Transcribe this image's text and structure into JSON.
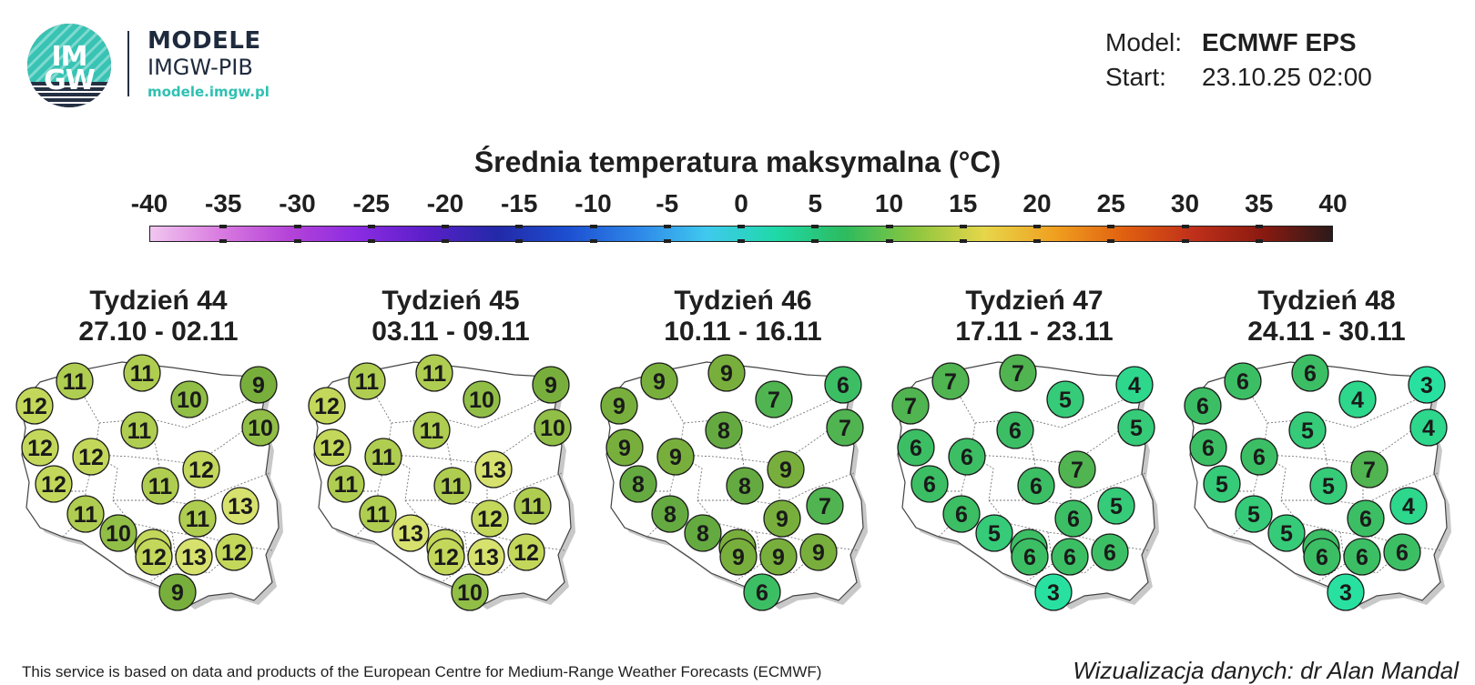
{
  "logo": {
    "abbr_top": "IM",
    "abbr_bottom": "GW",
    "title": "MODELE",
    "subtitle": "IMGW-PIB",
    "url": "modele.imgw.pl"
  },
  "model_info": {
    "model_label": "Model:",
    "model_value": "ECMWF EPS",
    "start_label": "Start:",
    "start_value": "23.10.25 02:00"
  },
  "colorbar": {
    "title": "Średnia temperatura maksymalna (°C)",
    "ticks": [
      "-40",
      "-35",
      "-30",
      "-25",
      "-20",
      "-15",
      "-10",
      "-5",
      "0",
      "5",
      "10",
      "15",
      "20",
      "25",
      "30",
      "35",
      "40"
    ],
    "colors": [
      "#f1c6f0",
      "#d97be0",
      "#b443d8",
      "#8a2be2",
      "#5a1fc8",
      "#2229a8",
      "#1d4fd1",
      "#2e86e8",
      "#3fc9ef",
      "#1fd9a8",
      "#2dbb5e",
      "#8cc63f",
      "#e6d64a",
      "#f0a020",
      "#e06010",
      "#c0301a",
      "#8b1a10",
      "#2c1a1a"
    ]
  },
  "weeks": [
    {
      "name": "Tydzień 44",
      "dates": "27.10 - 02.11",
      "values": [
        "11",
        "11",
        "9",
        "12",
        "10",
        "10",
        "12",
        "11",
        "12",
        "12",
        "11",
        "12",
        "11",
        "13",
        "11",
        "10",
        "12",
        "12",
        "13",
        "12",
        "9"
      ]
    },
    {
      "name": "Tydzień 45",
      "dates": "03.11 - 09.11",
      "values": [
        "11",
        "11",
        "9",
        "12",
        "10",
        "10",
        "12",
        "11",
        "11",
        "11",
        "11",
        "13",
        "11",
        "11",
        "12",
        "13",
        "12",
        "12",
        "13",
        "12",
        "10"
      ]
    },
    {
      "name": "Tydzień 46",
      "dates": "10.11 - 16.11",
      "values": [
        "9",
        "9",
        "6",
        "9",
        "7",
        "7",
        "9",
        "8",
        "9",
        "8",
        "8",
        "9",
        "8",
        "7",
        "9",
        "8",
        "9",
        "9",
        "9",
        "9",
        "6"
      ]
    },
    {
      "name": "Tydzień 47",
      "dates": "17.11 - 23.11",
      "values": [
        "7",
        "7",
        "4",
        "7",
        "5",
        "5",
        "6",
        "6",
        "6",
        "6",
        "6",
        "7",
        "6",
        "5",
        "6",
        "5",
        "6",
        "6",
        "6",
        "6",
        "3"
      ]
    },
    {
      "name": "Tydzień 48",
      "dates": "24.11 - 30.11",
      "values": [
        "6",
        "6",
        "3",
        "6",
        "4",
        "4",
        "6",
        "5",
        "6",
        "5",
        "5",
        "7",
        "5",
        "4",
        "6",
        "5",
        "6",
        "6",
        "6",
        "6",
        "3"
      ]
    }
  ],
  "footer": {
    "left": "This service is based on data and products of the European Centre for Medium-Range Weather Forecasts (ECMWF)",
    "right": "Wizualizacja danych: dr Alan Mandal"
  }
}
